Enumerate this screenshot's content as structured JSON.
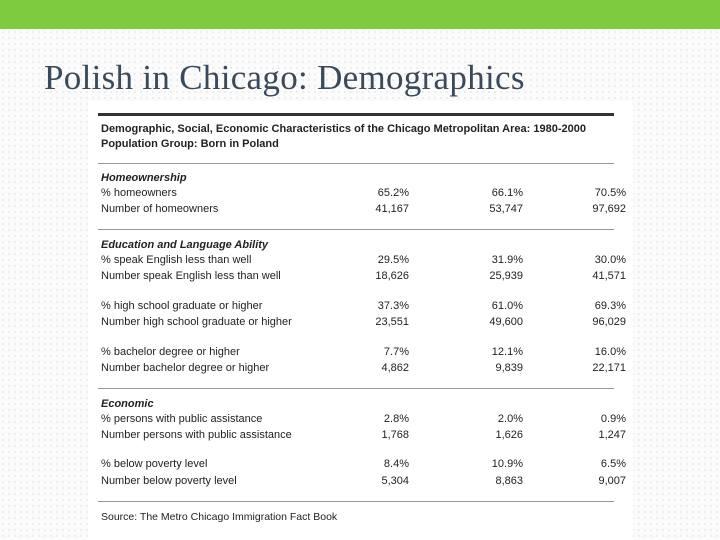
{
  "slide": {
    "title": "Polish in Chicago: Demographics"
  },
  "table": {
    "heading_line1": "Demographic, Social, Economic Characteristics of the Chicago Metropolitan Area: 1980-2000",
    "heading_line2": "Population Group: Born in Poland",
    "sections": [
      {
        "title": "Homeownership",
        "rows": [
          {
            "label": "% homeowners",
            "values": [
              "65.2%",
              "66.1%",
              "70.5%"
            ]
          },
          {
            "label": "Number of homeowners",
            "values": [
              "41,167",
              "53,747",
              "97,692"
            ]
          }
        ]
      },
      {
        "title": "Education and Language Ability",
        "rows": [
          {
            "label": "% speak English less than well",
            "values": [
              "29.5%",
              "31.9%",
              "30.0%"
            ]
          },
          {
            "label": "Number speak English less than well",
            "values": [
              "18,626",
              "25,939",
              "41,571"
            ]
          },
          {
            "label": "% high school graduate or higher",
            "values": [
              "37.3%",
              "61.0%",
              "69.3%"
            ]
          },
          {
            "label": "Number high school graduate or higher",
            "values": [
              "23,551",
              "49,600",
              "96,029"
            ]
          },
          {
            "label": "% bachelor degree or higher",
            "values": [
              "7.7%",
              "12.1%",
              "16.0%"
            ]
          },
          {
            "label": "Number bachelor degree or higher",
            "values": [
              "4,862",
              "9,839",
              "22,171"
            ]
          }
        ]
      },
      {
        "title": "Economic",
        "rows": [
          {
            "label": "% persons with public assistance",
            "values": [
              "2.8%",
              "2.0%",
              "0.9%"
            ]
          },
          {
            "label": "Number persons with public assistance",
            "values": [
              "1,768",
              "1,626",
              "1,247"
            ]
          },
          {
            "label": "% below poverty level",
            "values": [
              "8.4%",
              "10.9%",
              "6.5%"
            ]
          },
          {
            "label": "Number below poverty level",
            "values": [
              "5,304",
              "8,863",
              "9,007"
            ]
          }
        ]
      }
    ],
    "source": "Source: The Metro Chicago Immigration Fact Book"
  },
  "colors": {
    "top_bar": "#7fcb3f",
    "title_text": "#3a4a5a"
  }
}
